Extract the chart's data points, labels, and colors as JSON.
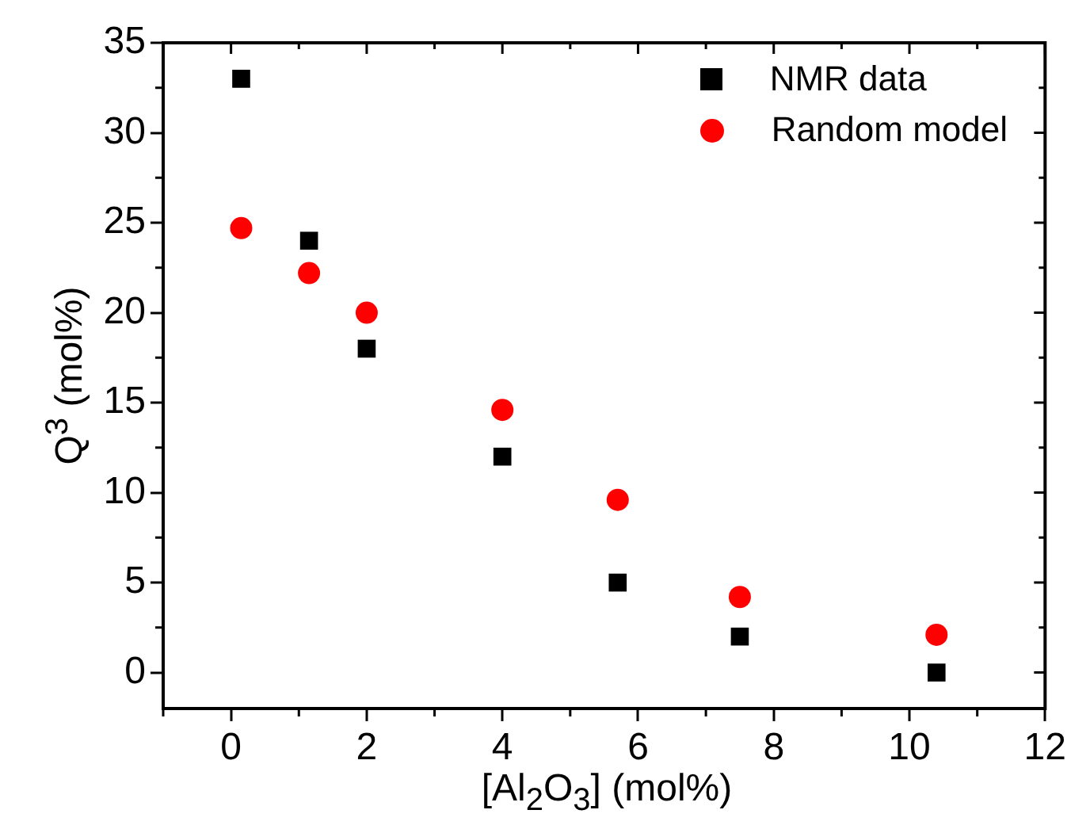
{
  "chart_data": {
    "type": "scatter",
    "xlabel": "[Al$_{2}$O$_{3}$] (mol%)",
    "ylabel": "Q$^{3}$ (mol%)",
    "xlim": [
      -1,
      12
    ],
    "xticks": [
      0,
      2,
      4,
      6,
      8,
      10,
      12
    ],
    "ylim": [
      -2,
      35
    ],
    "yticks": [
      0,
      5,
      10,
      15,
      20,
      25,
      30,
      35
    ],
    "grid": false,
    "legend": "top right",
    "series": [
      {
        "name": "NMR data",
        "color": "#000000",
        "marker": "square",
        "x": [
          0.15,
          1.15,
          2,
          4,
          5.7,
          7.5,
          10.4
        ],
        "values": [
          33,
          24,
          18,
          12,
          5,
          2,
          0
        ]
      },
      {
        "name": "Random model",
        "color": "#ff0000",
        "marker": "circle",
        "x": [
          0.15,
          1.15,
          2,
          4,
          5.7,
          7.5,
          10.4
        ],
        "values": [
          24.7,
          22.2,
          20,
          14.6,
          9.6,
          4.2,
          2.1
        ]
      }
    ]
  }
}
